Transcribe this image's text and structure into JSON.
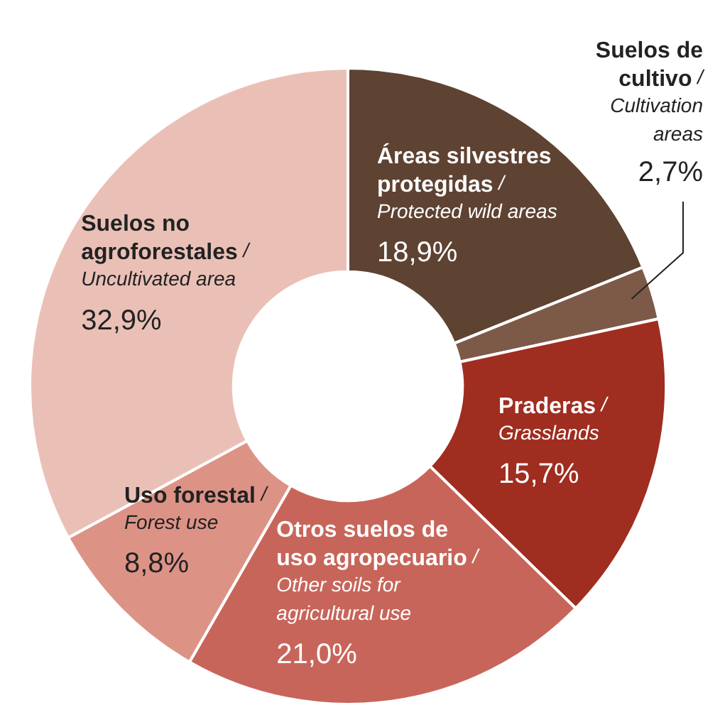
{
  "chart_data": {
    "type": "donut",
    "categories": [
      "Áreas silvestres protegidas / Protected wild areas",
      "Suelos de cultivo / Cultivation areas",
      "Praderas / Grasslands",
      "Otros suelos de uso agropecuario / Other soils for agricultural use",
      "Uso forestal / Forest use",
      "Suelos no agroforestales / Uncultivated area"
    ],
    "values": [
      18.9,
      2.7,
      15.7,
      21.0,
      8.8,
      32.9
    ],
    "colors": [
      "#5e4232",
      "#7d5a48",
      "#9f2d20",
      "#c8655a",
      "#dc9386",
      "#eac0b6"
    ],
    "value_labels": [
      "18,9%",
      "2,7%",
      "15,7%",
      "21,0%",
      "8,8%",
      "32,9%"
    ]
  }
}
